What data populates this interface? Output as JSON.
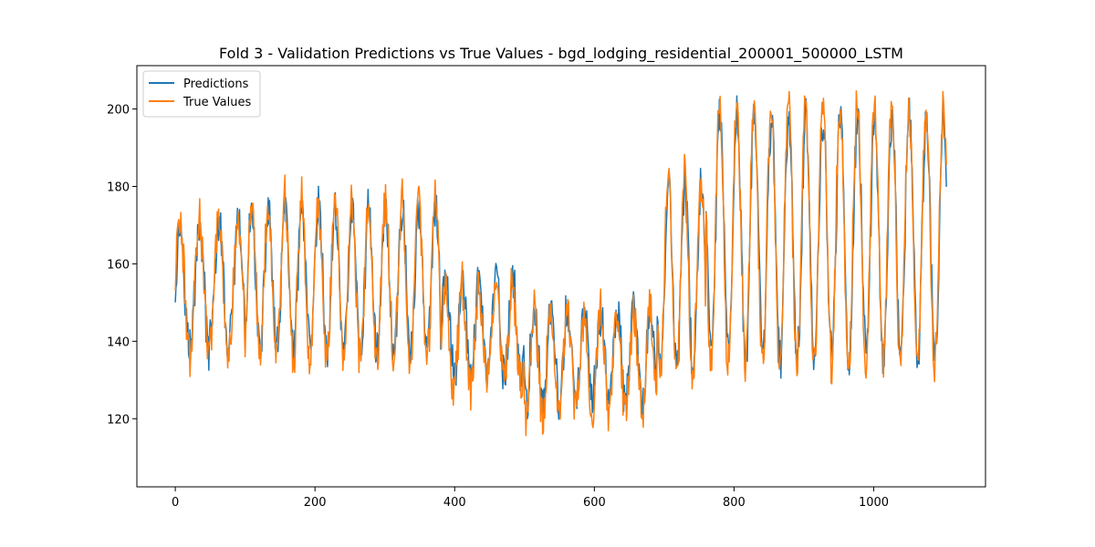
{
  "chart_data": {
    "type": "line",
    "title": "Fold 3 - Validation Predictions vs True Values - bgd_lodging_residential_200001_500000_LSTM",
    "xlabel": "",
    "ylabel": "",
    "xlim": [
      -55,
      1160
    ],
    "ylim": [
      102.4,
      211.2
    ],
    "xticks": [
      0,
      200,
      400,
      600,
      800,
      1000
    ],
    "yticks": [
      120,
      140,
      160,
      180,
      200
    ],
    "grid": false,
    "legend_position": "top-left",
    "colors": {
      "predictions": "#1f77b4",
      "true_values": "#ff7f0e"
    },
    "series": [
      {
        "name": "Predictions",
        "segments": [
          {
            "x0": 0,
            "x1": 100,
            "n": 3.6,
            "lo": 138,
            "hi": 170,
            "phase": 0.75
          },
          {
            "x0": 100,
            "x1": 380,
            "n": 11.7,
            "lo": 137,
            "hi": 174,
            "phase": 0.6
          },
          {
            "x0": 380,
            "x1": 500,
            "n": 5,
            "lo": 131,
            "hi": 156,
            "phase": 0.7
          },
          {
            "x0": 500,
            "x1": 690,
            "n": 8,
            "lo": 124,
            "hi": 148,
            "phase": 0.4
          },
          {
            "x0": 690,
            "x1": 760,
            "n": 3,
            "lo": 133,
            "hi": 180,
            "phase": 0.3
          },
          {
            "x0": 760,
            "x1": 1105,
            "n": 14,
            "lo": 136,
            "hi": 198,
            "phase": 0.2
          }
        ]
      },
      {
        "name": "True Values",
        "segments": [
          {
            "x0": 0,
            "x1": 100,
            "n": 3.6,
            "lo": 136,
            "hi": 172,
            "phase": 0.77
          },
          {
            "x0": 100,
            "x1": 380,
            "n": 11.7,
            "lo": 135,
            "hi": 176,
            "phase": 0.62
          },
          {
            "x0": 380,
            "x1": 500,
            "n": 5,
            "lo": 128,
            "hi": 154,
            "phase": 0.72
          },
          {
            "x0": 500,
            "x1": 690,
            "n": 8,
            "lo": 121,
            "hi": 147,
            "phase": 0.42
          },
          {
            "x0": 690,
            "x1": 760,
            "n": 3,
            "lo": 132,
            "hi": 182,
            "phase": 0.32
          },
          {
            "x0": 760,
            "x1": 1105,
            "n": 14,
            "lo": 134,
            "hi": 201,
            "phase": 0.22
          }
        ]
      }
    ]
  }
}
